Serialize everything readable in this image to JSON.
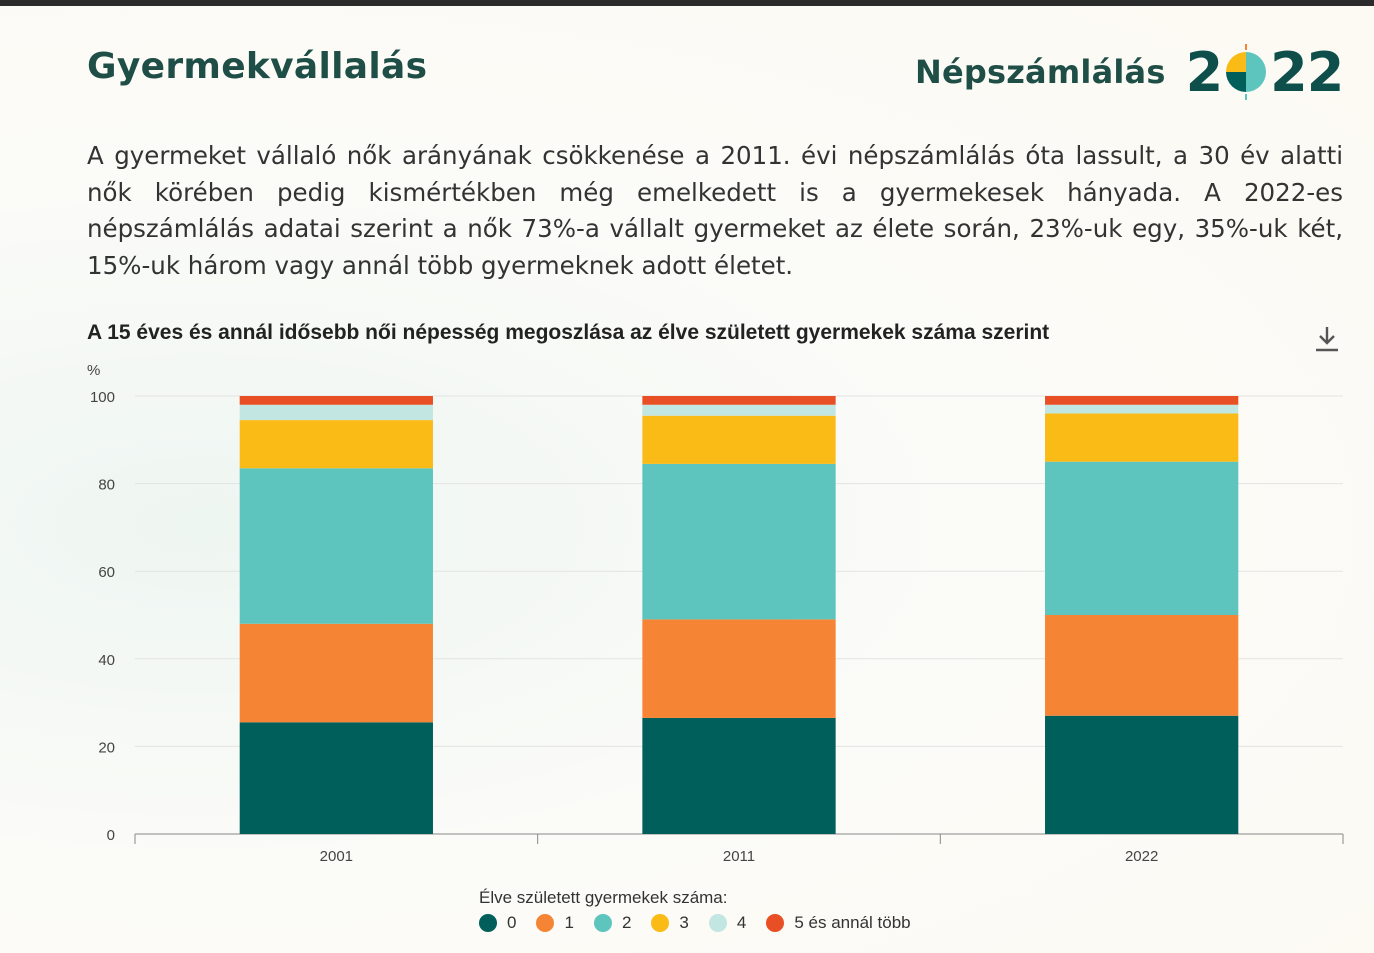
{
  "header": {
    "title": "Gyermekvállalás",
    "brand_word": "Népszámlálás",
    "brand_year_left": "2",
    "brand_year_right": "22"
  },
  "intro_text": "A gyermeket vállaló nők arányának csökkenése a 2011. évi népszámlálás óta lassult, a 30 év alatti nők körében pedig kismértékben még emelkedett is a gyermekesek hányada. A 2022-es népszámlálás adatai szerint a nők 73%-a vállalt gyermeket az élete során, 23%-uk egy, 35%-uk két, 15%-uk három vagy annál több gyermeknek adott életet.",
  "icons": {
    "download": "download-icon",
    "brand_mark": "pie-logo-icon"
  },
  "chart_data": {
    "type": "bar",
    "stacked": true,
    "title": "A 15 éves és annál idősebb női népesség megoszlása az élve született gyermekek száma szerint",
    "ylabel": "%",
    "xlabel": "",
    "ylim": [
      0,
      100
    ],
    "yticks": [
      0,
      20,
      40,
      60,
      80,
      100
    ],
    "grid": true,
    "legend_title": "Élve született gyermekek száma:",
    "legend_position": "bottom",
    "categories": [
      "2001",
      "2011",
      "2022"
    ],
    "series": [
      {
        "name": "0",
        "color": "#005f5b",
        "values": [
          25.5,
          26.5,
          27.0
        ]
      },
      {
        "name": "1",
        "color": "#f58535",
        "values": [
          22.5,
          22.5,
          23.0
        ]
      },
      {
        "name": "2",
        "color": "#5dc5be",
        "values": [
          35.5,
          35.5,
          35.0
        ]
      },
      {
        "name": "3",
        "color": "#fbbb16",
        "values": [
          11.0,
          11.0,
          11.0
        ]
      },
      {
        "name": "4",
        "color": "#c2e6e1",
        "values": [
          3.5,
          2.5,
          2.0
        ]
      },
      {
        "name": "5 és annál több",
        "color": "#e94f25",
        "values": [
          2.0,
          2.0,
          2.0
        ]
      }
    ]
  }
}
